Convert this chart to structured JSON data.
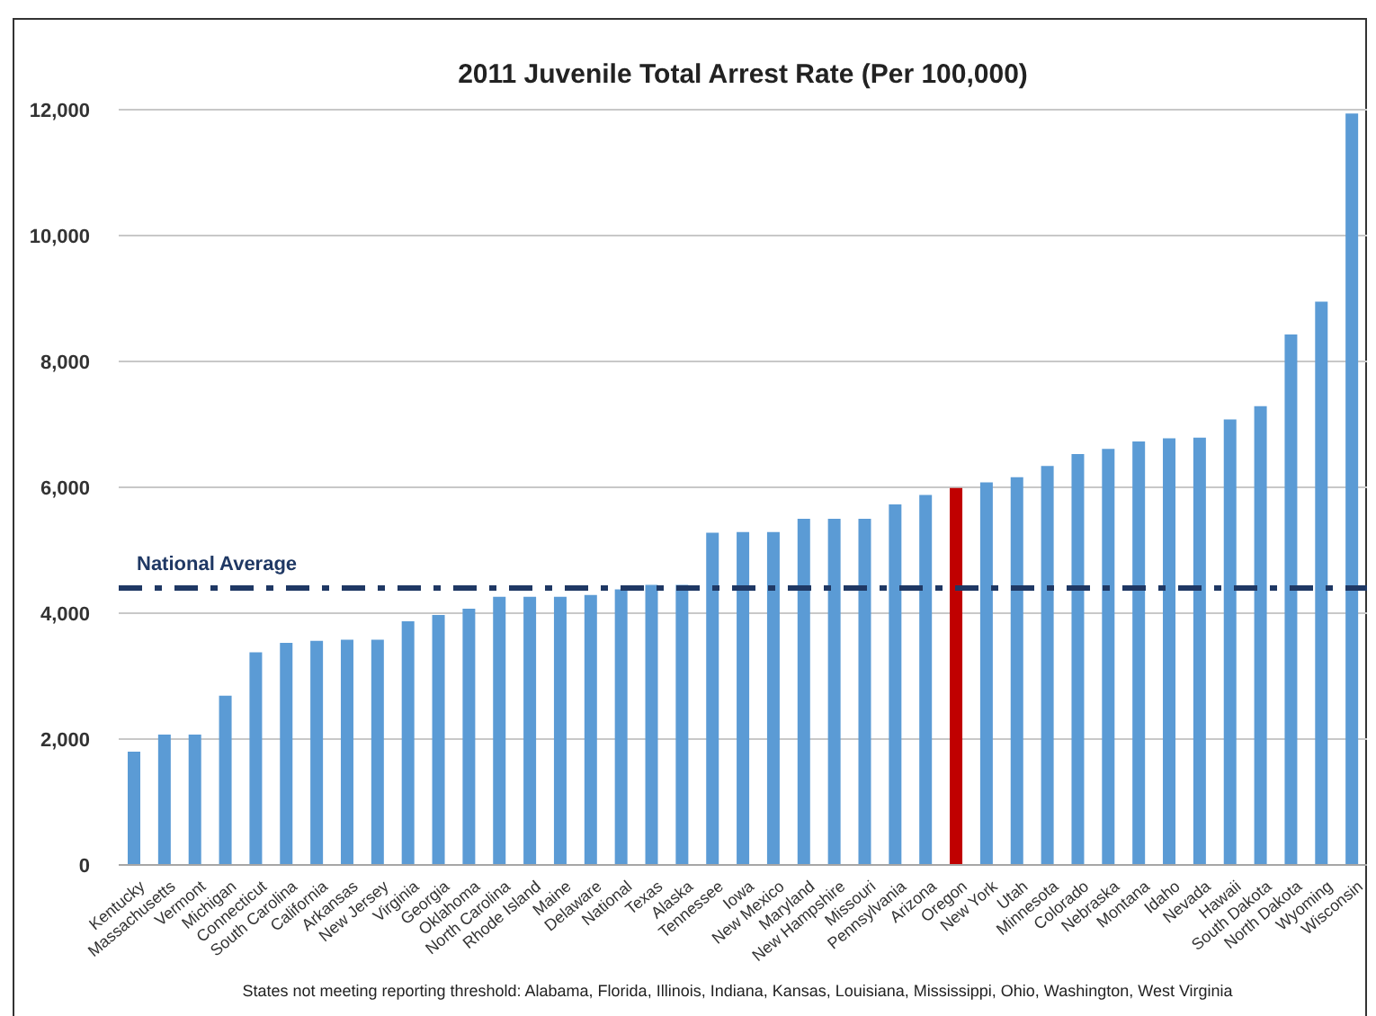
{
  "chart_data": {
    "type": "bar",
    "title": "2011 Juvenile Total Arrest Rate (Per 100,000)",
    "categories": [
      "Kentucky",
      "Massachusetts",
      "Vermont",
      "Michigan",
      "Connecticut",
      "South Carolina",
      "California",
      "Arkansas",
      "New Jersey",
      "Virginia",
      "Georgia",
      "Oklahoma",
      "North Carolina",
      "Rhode Island",
      "Maine",
      "Delaware",
      "National",
      "Texas",
      "Alaska",
      "Tennessee",
      "Iowa",
      "New Mexico",
      "Maryland",
      "New Hampshire",
      "Missouri",
      "Pennsylvania",
      "Arizona",
      "Oregon",
      "New York",
      "Utah",
      "Minnesota",
      "Colorado",
      "Nebraska",
      "Montana",
      "Idaho",
      "Nevada",
      "Hawaii",
      "South Dakota",
      "North Dakota",
      "Wyoming",
      "Wisconsin"
    ],
    "values": [
      1800,
      2070,
      2070,
      2690,
      3380,
      3530,
      3560,
      3580,
      3580,
      3870,
      3970,
      4070,
      4260,
      4260,
      4260,
      4290,
      4380,
      4450,
      4450,
      5280,
      5290,
      5290,
      5500,
      5500,
      5500,
      5730,
      5880,
      5990,
      6080,
      6160,
      6340,
      6530,
      6610,
      6730,
      6780,
      6790,
      7080,
      7290,
      8430,
      8950,
      11940
    ],
    "colors": [
      "#5b9bd5",
      "#5b9bd5",
      "#5b9bd5",
      "#5b9bd5",
      "#5b9bd5",
      "#5b9bd5",
      "#5b9bd5",
      "#5b9bd5",
      "#5b9bd5",
      "#5b9bd5",
      "#5b9bd5",
      "#5b9bd5",
      "#5b9bd5",
      "#5b9bd5",
      "#5b9bd5",
      "#5b9bd5",
      "#5b9bd5",
      "#5b9bd5",
      "#5b9bd5",
      "#5b9bd5",
      "#5b9bd5",
      "#5b9bd5",
      "#5b9bd5",
      "#5b9bd5",
      "#5b9bd5",
      "#5b9bd5",
      "#5b9bd5",
      "#c00000",
      "#5b9bd5",
      "#5b9bd5",
      "#5b9bd5",
      "#5b9bd5",
      "#5b9bd5",
      "#5b9bd5",
      "#5b9bd5",
      "#5b9bd5",
      "#5b9bd5",
      "#5b9bd5",
      "#5b9bd5",
      "#5b9bd5",
      "#5b9bd5"
    ],
    "ylim": [
      0,
      12000
    ],
    "yticks": [
      0,
      {
        "value": 2000,
        "label": "2,000"
      },
      {
        "value": 4000,
        "label": "4,000"
      },
      {
        "value": 6000,
        "label": "6,000"
      },
      {
        "value": 8000,
        "label": "8,000"
      },
      {
        "value": 10000,
        "label": "10,000"
      },
      {
        "value": 12000,
        "label": "12,000"
      }
    ],
    "grid": "y",
    "ref_lines": [
      {
        "axis": "y",
        "value": 4400,
        "label": "National Average",
        "color": "#1f3864",
        "line_style": "dashdot"
      }
    ],
    "annotations": [
      "States not meeting reporting threshold: Alabama, Florida, Illinois, Indiana, Kansas, Louisiana, Mississippi, Ohio, Washington, West Virginia"
    ]
  }
}
